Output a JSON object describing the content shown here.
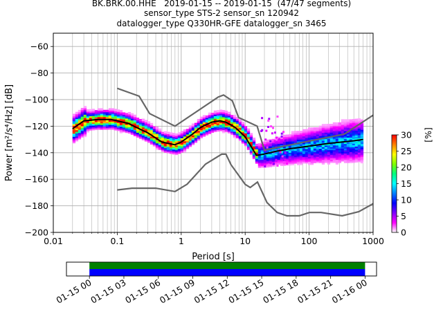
{
  "title": {
    "line1": "BK.BRK.00.HHE   2019-01-15 -- 2019-01-15  (47/47 segments)",
    "line2": "sensor_type STS-2 sensor_sn 120942",
    "line3": "datalogger_type Q330HR-GFE datalogger_sn 3465"
  },
  "colors": {
    "grid": "#b0b0b0",
    "noise_model": "#666666",
    "mode_line": "#000000",
    "segments_upper": "#008000",
    "segments_lower": "#0000ff"
  },
  "chart_data": [
    {
      "type": "heatmap",
      "title": "BK.BRK.00.HHE   2019-01-15 -- 2019-01-15  (47/47 segments)",
      "xlabel": "Period [s]",
      "ylabel": "Power [m²/s⁴/Hz] [dB]",
      "xscale": "log",
      "xlim": [
        0.01,
        1000
      ],
      "ylim": [
        -200,
        -50
      ],
      "x_ticks": [
        0.01,
        0.1,
        1,
        10,
        100,
        1000
      ],
      "x_tick_labels": [
        "0.01",
        "0.1",
        "1",
        "10",
        "100",
        "1000"
      ],
      "y_ticks": [
        -200,
        -180,
        -160,
        -140,
        -120,
        -100,
        -80,
        -60
      ],
      "y_tick_labels": [
        "−200",
        "−180",
        "−160",
        "−140",
        "−120",
        "−100",
        "−80",
        "−60"
      ],
      "grid": true,
      "colorbar": {
        "label": "[%]",
        "range": [
          0,
          30
        ],
        "ticks": [
          0,
          5,
          10,
          15,
          20,
          25,
          30
        ],
        "colors": [
          "#ffffff",
          "#ff00ff",
          "#7f00ff",
          "#0000ff",
          "#0080ff",
          "#00ffff",
          "#00ff80",
          "#80ff00",
          "#ffff00",
          "#ff8000",
          "#ff0000"
        ]
      },
      "series": [
        {
          "name": "",
          "role": "mode",
          "x": [
            0.02,
            0.03,
            0.05,
            0.08,
            0.1,
            0.15,
            0.2,
            0.3,
            0.5,
            0.8,
            1,
            1.5,
            2,
            3,
            4,
            5,
            7,
            10,
            15,
            20,
            30,
            50,
            100,
            200,
            500,
            700
          ],
          "y": [
            -122,
            -116,
            -115,
            -115,
            -116,
            -118,
            -121,
            -125,
            -132,
            -134,
            -132,
            -126,
            -121,
            -117,
            -116,
            -117,
            -121,
            -128,
            -142,
            -141,
            -139,
            -137,
            -135,
            -133,
            -131,
            -130
          ]
        },
        {
          "name": "",
          "role": "new_high_noise_model",
          "x": [
            0.1,
            0.22,
            0.32,
            0.8,
            3.8,
            4.6,
            6.3,
            7.9,
            15.4,
            20,
            354.8,
            10000
          ],
          "y": [
            -91.5,
            -97.4,
            -110.5,
            -120.0,
            -98.0,
            -96.5,
            -101.0,
            -113.5,
            -120.0,
            -138.0,
            -126.0,
            -80.1
          ]
        },
        {
          "name": "",
          "role": "new_low_noise_model",
          "x": [
            0.1,
            0.17,
            0.4,
            0.8,
            1.24,
            2.4,
            4.3,
            5.0,
            6.0,
            10.0,
            12.0,
            15.6,
            21.9,
            31.6,
            45.0,
            70.0,
            101.0,
            154.0,
            328.0,
            600.0,
            10000
          ],
          "y": [
            -168.0,
            -166.7,
            -166.7,
            -169.2,
            -163.7,
            -148.6,
            -141.1,
            -141.1,
            -149.0,
            -163.8,
            -166.2,
            -162.1,
            -177.5,
            -185.0,
            -187.5,
            -187.5,
            -185.0,
            -185.0,
            -187.5,
            -184.4,
            -151.5
          ]
        }
      ]
    },
    {
      "type": "bar",
      "orientation": "horizontal",
      "x_tick_labels": [
        "01-15 00",
        "01-15 03",
        "01-15 06",
        "01-15 09",
        "01-15 12",
        "01-15 15",
        "01-15 18",
        "01-15 21",
        "01-16 00"
      ],
      "xlim": [
        "2019-01-14 22:00",
        "2019-01-16 01:00"
      ],
      "series": [
        {
          "name": "",
          "role": "data_segments",
          "start": "2019-01-15 00:00",
          "end": "2019-01-16 00:00"
        },
        {
          "name": "",
          "role": "psd_segments",
          "start": "2019-01-15 00:00",
          "end": "2019-01-16 00:00"
        }
      ]
    }
  ]
}
